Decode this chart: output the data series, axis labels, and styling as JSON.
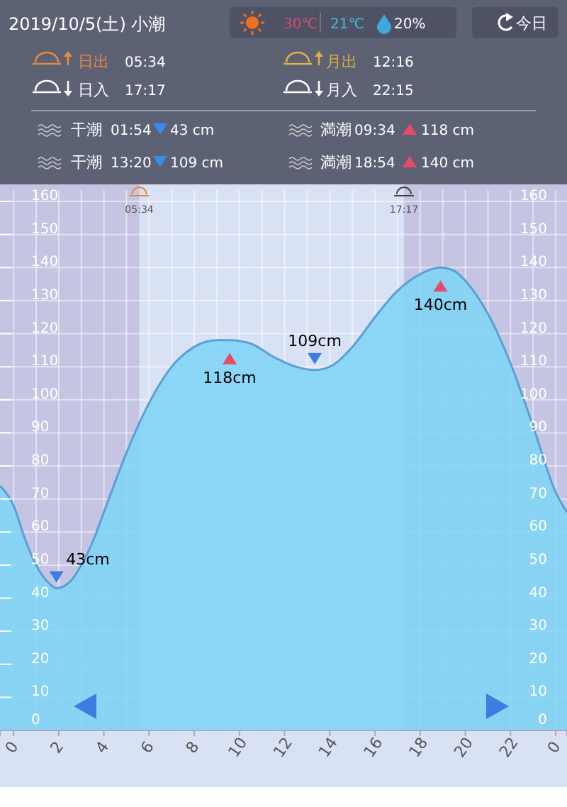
{
  "chart_data": {
    "type": "area",
    "title": "2019/10/5(土) 小潮",
    "x": [
      "2019-10-04T23:24",
      "2019-10-05T00:00",
      "2019-10-05T00:30",
      "2019-10-05T01:00",
      "2019-10-05T01:30",
      "2019-10-05T01:54",
      "2019-10-05T02:30",
      "2019-10-05T03:00",
      "2019-10-05T03:30",
      "2019-10-05T04:00",
      "2019-10-05T05:00",
      "2019-10-05T06:00",
      "2019-10-05T07:00",
      "2019-10-05T08:00",
      "2019-10-05T09:00",
      "2019-10-05T09:34",
      "2019-10-05T10:30",
      "2019-10-05T11:30",
      "2019-10-05T12:30",
      "2019-10-05T13:20",
      "2019-10-05T14:00",
      "2019-10-05T15:00",
      "2019-10-05T16:00",
      "2019-10-05T17:00",
      "2019-10-05T18:00",
      "2019-10-05T18:54",
      "2019-10-05T19:30",
      "2019-10-05T20:00",
      "2019-10-05T21:00",
      "2019-10-05T22:00",
      "2019-10-05T23:00",
      "2019-10-06T00:00",
      "2019-10-06T00:30"
    ],
    "series": [
      {
        "color": "#7dd3f7",
        "values": [
          74,
          68,
          58,
          50,
          45,
          43,
          45,
          50,
          57,
          66,
          84,
          99,
          110,
          116,
          118,
          118,
          117,
          113,
          110,
          109,
          110,
          116,
          125,
          133,
          138,
          140,
          139,
          136,
          126,
          111,
          92,
          72,
          66
        ]
      }
    ],
    "xlim": [
      "2019-10-04T23:24",
      "2019-10-06T00:30"
    ],
    "xticks": [
      {
        "value": "2019-10-05T00:00",
        "label": "0"
      },
      {
        "value": "2019-10-05T02:00",
        "label": "2"
      },
      {
        "value": "2019-10-05T04:00",
        "label": "4"
      },
      {
        "value": "2019-10-05T06:00",
        "label": "6"
      },
      {
        "value": "2019-10-05T08:00",
        "label": "8"
      },
      {
        "value": "2019-10-05T10:00",
        "label": "10"
      },
      {
        "value": "2019-10-05T12:00",
        "label": "12"
      },
      {
        "value": "2019-10-05T14:00",
        "label": "14"
      },
      {
        "value": "2019-10-05T16:00",
        "label": "16"
      },
      {
        "value": "2019-10-05T18:00",
        "label": "18"
      },
      {
        "value": "2019-10-05T20:00",
        "label": "20"
      },
      {
        "value": "2019-10-05T22:00",
        "label": "22"
      },
      {
        "value": "2019-10-06T00:00",
        "label": "0"
      }
    ],
    "ylim": [
      0,
      160
    ],
    "yticks": [
      0,
      10,
      20,
      30,
      40,
      50,
      60,
      70,
      80,
      90,
      100,
      110,
      120,
      130,
      140,
      150,
      160
    ],
    "y2lim": [
      0,
      160
    ],
    "y2ticks": [
      0,
      10,
      20,
      30,
      40,
      50,
      60,
      70,
      80,
      90,
      100,
      110,
      120,
      130,
      140,
      150,
      160
    ],
    "grid": true,
    "bands": [
      {
        "axis": "x",
        "from": "2019-10-04T23:24",
        "to": "2019-10-05T05:34",
        "color": "#c5c5e3"
      },
      {
        "axis": "x",
        "from": "2019-10-05T17:17",
        "to": "2019-10-06T00:30",
        "color": "#c5c5e3"
      }
    ],
    "annotations": [
      "30℃",
      "21℃",
      "20%",
      "今日",
      "日出",
      "05:34",
      "月出",
      "12:16",
      "日入",
      "17:17",
      "月入",
      "22:15",
      "干潮",
      "01:54",
      "43 cm",
      "満潮",
      "09:34",
      "118 cm",
      "干潮",
      "13:20",
      "109 cm",
      "満潮",
      "18:54",
      "140 cm",
      {
        "text": "05:34",
        "x": "2019-10-05T05:34",
        "y": 160
      },
      {
        "text": "17:17",
        "x": "2019-10-05T17:17",
        "y": 160
      },
      {
        "text": "43cm",
        "x": "2019-10-05T01:54",
        "y": 43
      },
      {
        "text": "118cm",
        "x": "2019-10-05T09:34",
        "y": 118
      },
      {
        "text": "109cm",
        "x": "2019-10-05T13:20",
        "y": 109
      },
      {
        "text": "140cm",
        "x": "2019-10-05T18:54",
        "y": 140
      }
    ]
  }
}
